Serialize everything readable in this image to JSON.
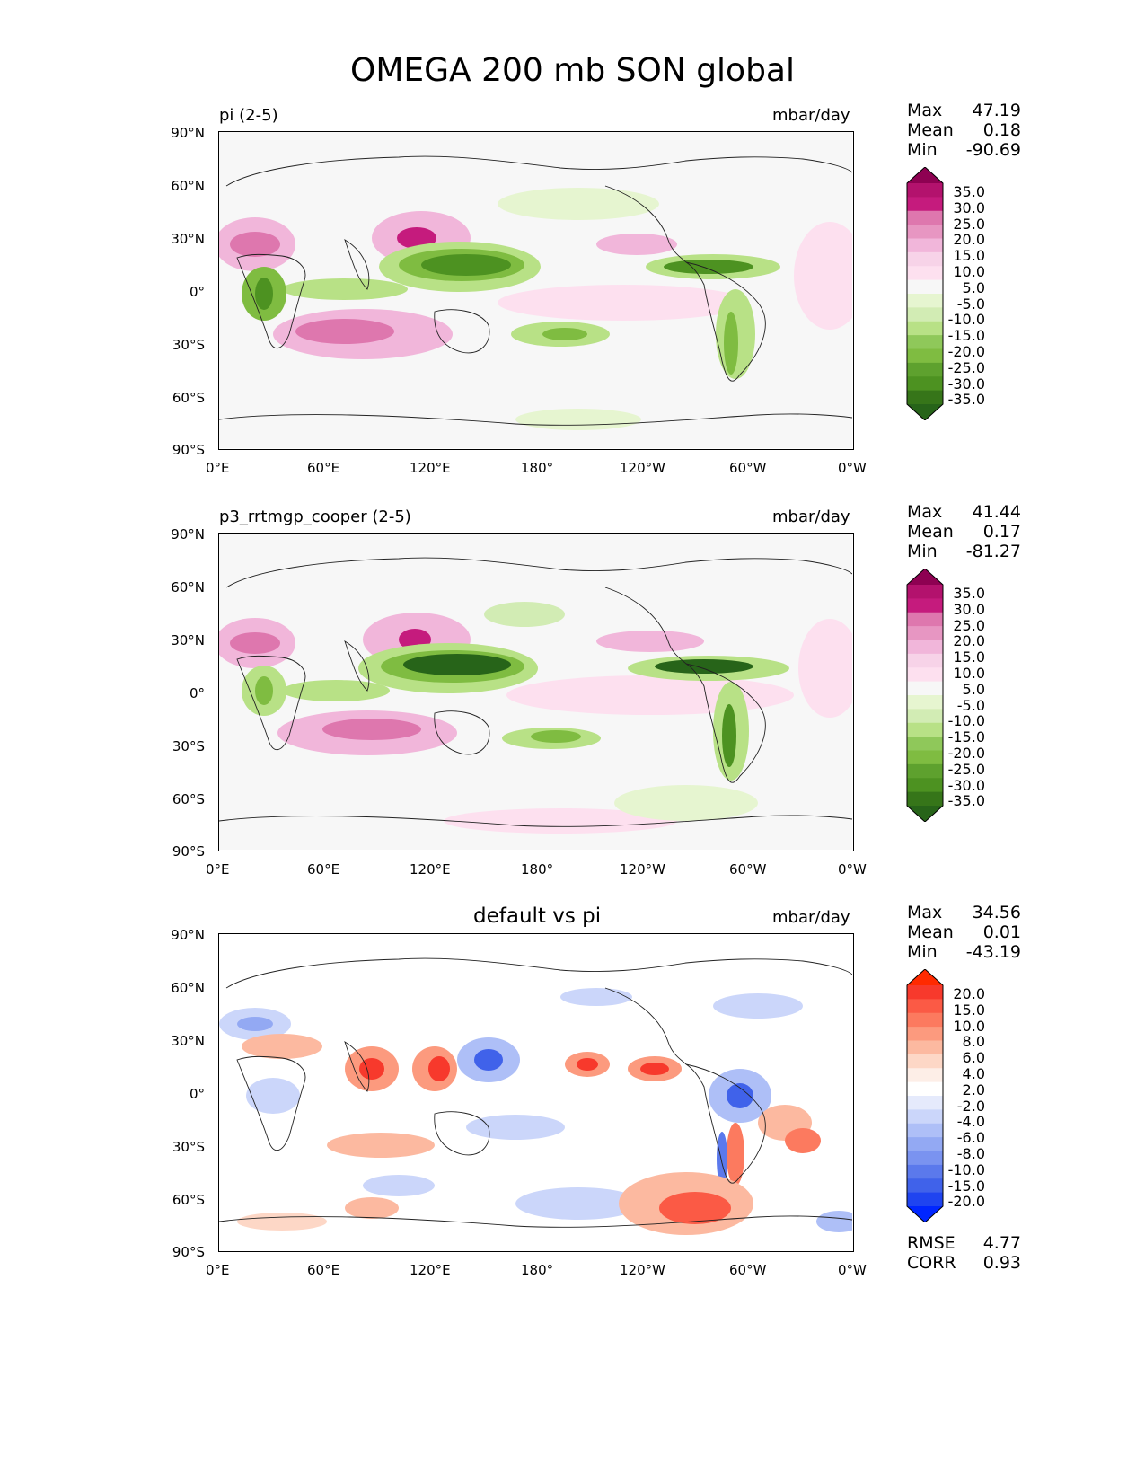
{
  "figure": {
    "title": "OMEGA 200 mb SON global"
  },
  "x_ticks": [
    "0°E",
    "60°E",
    "120°E",
    "180°",
    "120°W",
    "60°W",
    "0°W"
  ],
  "y_ticks": [
    "90°N",
    "60°N",
    "30°N",
    "0°",
    "30°S",
    "60°S",
    "90°S"
  ],
  "panels": [
    {
      "label": "pi (2-5)",
      "units": "mbar/day",
      "stats": [
        {
          "name": "Max",
          "value": "47.19"
        },
        {
          "name": "Mean",
          "value": "0.18"
        },
        {
          "name": "Min",
          "value": "-90.69"
        }
      ],
      "colorbar": {
        "labels": [
          "35.0",
          "30.0",
          "25.0",
          "20.0",
          "15.0",
          "10.0",
          "5.0",
          "-5.0",
          "-10.0",
          "-15.0",
          "-20.0",
          "-25.0",
          "-30.0",
          "-35.0"
        ],
        "colors": [
          "#8e0152",
          "#b3126d",
          "#c51b7d",
          "#de77ae",
          "#e796c2",
          "#f1b6da",
          "#f7d3e8",
          "#fde0ef",
          "#f7f7f7",
          "#e6f5d0",
          "#d2ecb4",
          "#b8e186",
          "#8fc85a",
          "#7fbc41",
          "#5ea12e",
          "#4d9221",
          "#367519",
          "#276419"
        ]
      }
    },
    {
      "label": "p3_rrtmgp_cooper (2-5)",
      "units": "mbar/day",
      "stats": [
        {
          "name": "Max",
          "value": "41.44"
        },
        {
          "name": "Mean",
          "value": "0.17"
        },
        {
          "name": "Min",
          "value": "-81.27"
        }
      ],
      "colorbar": {
        "labels": [
          "35.0",
          "30.0",
          "25.0",
          "20.0",
          "15.0",
          "10.0",
          "5.0",
          "-5.0",
          "-10.0",
          "-15.0",
          "-20.0",
          "-25.0",
          "-30.0",
          "-35.0"
        ],
        "colors": [
          "#8e0152",
          "#b3126d",
          "#c51b7d",
          "#de77ae",
          "#e796c2",
          "#f1b6da",
          "#f7d3e8",
          "#fde0ef",
          "#f7f7f7",
          "#e6f5d0",
          "#d2ecb4",
          "#b8e186",
          "#8fc85a",
          "#7fbc41",
          "#5ea12e",
          "#4d9221",
          "#367519",
          "#276419"
        ]
      }
    },
    {
      "title": "default vs pi",
      "units": "mbar/day",
      "stats": [
        {
          "name": "Max",
          "value": "34.56"
        },
        {
          "name": "Mean",
          "value": "0.01"
        },
        {
          "name": "Min",
          "value": "-43.19"
        }
      ],
      "extra_stats": [
        {
          "name": "RMSE",
          "value": "4.77"
        },
        {
          "name": "CORR",
          "value": "0.93"
        }
      ],
      "colorbar": {
        "labels": [
          "20.0",
          "15.0",
          "10.0",
          "8.0",
          "6.0",
          "4.0",
          "2.0",
          "-2.0",
          "-4.0",
          "-6.0",
          "-8.0",
          "-10.0",
          "-15.0",
          "-20.0"
        ],
        "colors": [
          "#ff2a00",
          "#f7392c",
          "#fb5a45",
          "#fc7a5f",
          "#fc9a7e",
          "#fcb9a0",
          "#fdd7c6",
          "#fdeee7",
          "#ffffff",
          "#e5eafc",
          "#cbd6fa",
          "#aebff7",
          "#93a9f3",
          "#7a93f0",
          "#5b79ec",
          "#4062ea",
          "#1f44f0",
          "#0026ff"
        ]
      }
    }
  ]
}
